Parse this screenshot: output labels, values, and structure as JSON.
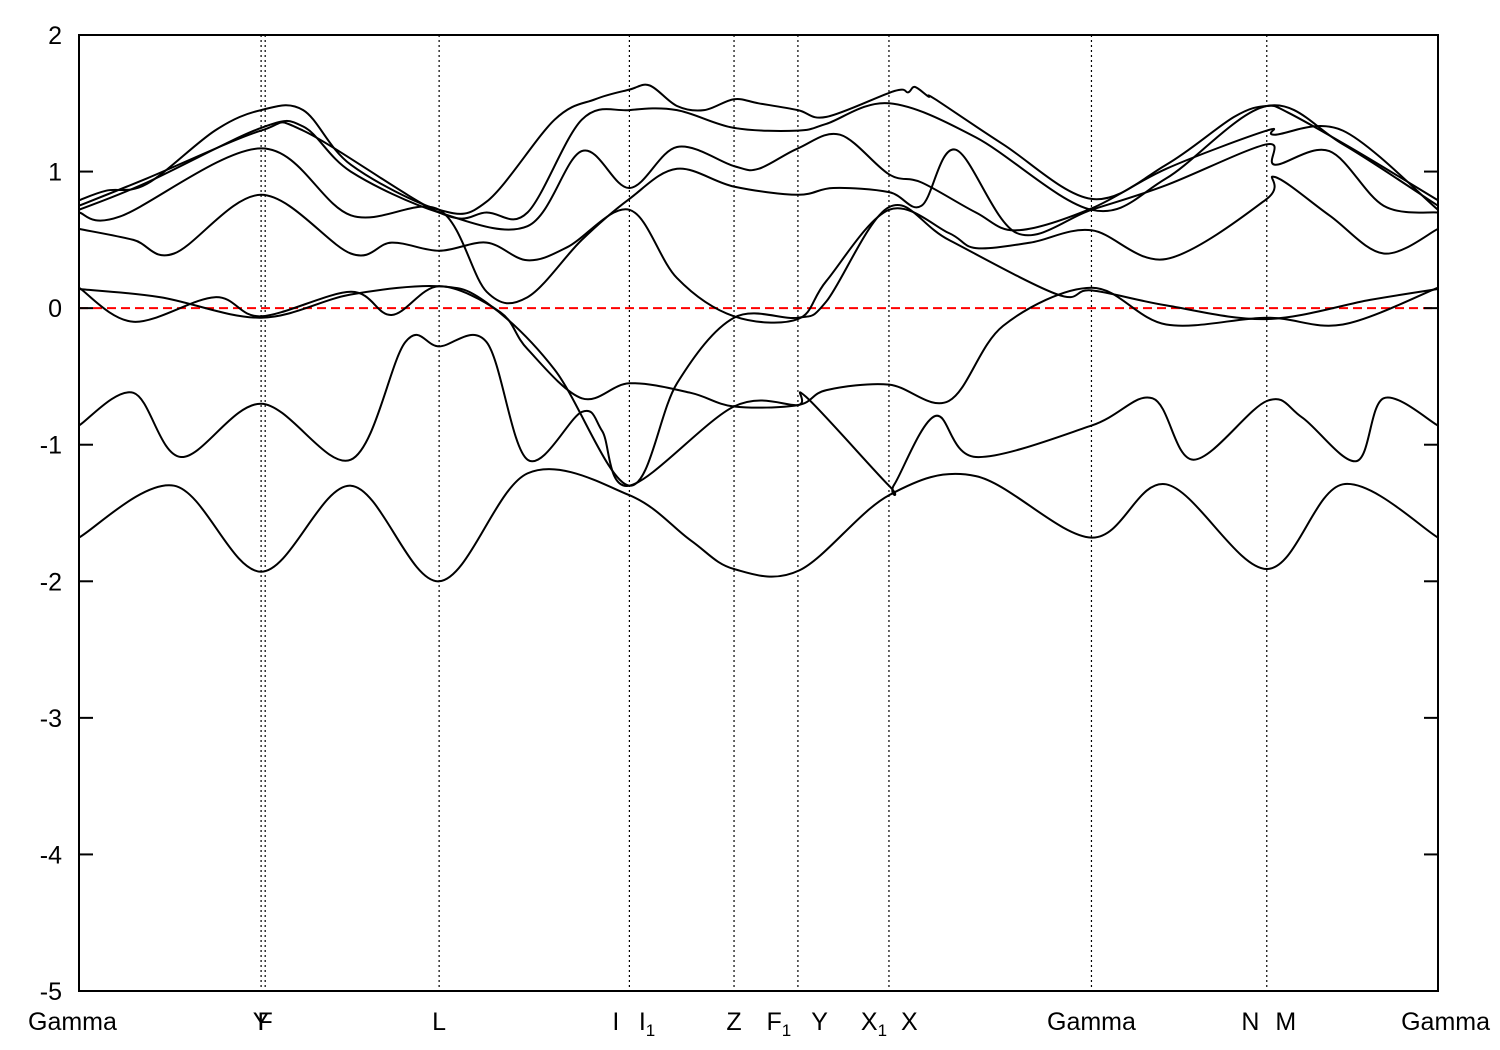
{
  "chart_data": {
    "type": "line",
    "title": "",
    "xlabel": "",
    "ylabel": "",
    "ylim": [
      -5,
      2
    ],
    "xlim": [
      0,
      1
    ],
    "grid": false,
    "legend": "none",
    "y_ticks": [
      -5,
      -4,
      -3,
      -2,
      -1,
      0,
      1,
      2
    ],
    "y_tick_labels": [
      "-5",
      "-4",
      "-3",
      "-2",
      "-1",
      "0",
      "1",
      "2"
    ],
    "fermi_level": {
      "y": 0,
      "color": "#ff0000",
      "style": "dashed"
    },
    "band_color": "#000000",
    "kpoint_line_positions": [
      0.134,
      0.137,
      0.265,
      0.405,
      0.482,
      0.529,
      0.596,
      0.745,
      0.874
    ],
    "kpoint_labels": [
      {
        "x": 0.0,
        "main": "Gamma",
        "sub": "",
        "anchor": "start"
      },
      {
        "x": 0.134,
        "main": "Y",
        "sub": "",
        "anchor": "middle"
      },
      {
        "x": 0.137,
        "main": "F",
        "sub": "",
        "anchor": "middle"
      },
      {
        "x": 0.265,
        "main": "L",
        "sub": "",
        "anchor": "middle"
      },
      {
        "x": 0.395,
        "main": "I",
        "sub": "",
        "anchor": "middle"
      },
      {
        "x": 0.418,
        "main": "I",
        "sub": "1",
        "anchor": "middle"
      },
      {
        "x": 0.482,
        "main": "Z",
        "sub": "",
        "anchor": "middle"
      },
      {
        "x": 0.515,
        "main": "F",
        "sub": "1",
        "anchor": "middle"
      },
      {
        "x": 0.545,
        "main": "Y",
        "sub": "",
        "anchor": "middle"
      },
      {
        "x": 0.585,
        "main": "X",
        "sub": "1",
        "anchor": "middle"
      },
      {
        "x": 0.611,
        "main": "X",
        "sub": "",
        "anchor": "middle"
      },
      {
        "x": 0.745,
        "main": "Gamma",
        "sub": "",
        "anchor": "middle"
      },
      {
        "x": 0.862,
        "main": "N",
        "sub": "",
        "anchor": "middle"
      },
      {
        "x": 0.888,
        "main": "M",
        "sub": "",
        "anchor": "middle"
      },
      {
        "x": 1.0,
        "main": "Gamma",
        "sub": "",
        "anchor": "end"
      }
    ],
    "series": [
      {
        "x": [
          0,
          0.07,
          0.134,
          0.2,
          0.265,
          0.33,
          0.405,
          0.45,
          0.482,
          0.53,
          0.596,
          0.66,
          0.745,
          0.8,
          0.874,
          0.93,
          1.0
        ],
        "y": [
          -1.68,
          -1.3,
          -1.93,
          -1.3,
          -2.0,
          -1.21,
          -1.37,
          -1.7,
          -1.91,
          -1.92,
          -1.37,
          -1.23,
          -1.68,
          -1.29,
          -1.91,
          -1.29,
          -1.68
        ]
      },
      {
        "x": [
          0,
          0.04,
          0.075,
          0.134,
          0.2,
          0.24,
          0.265,
          0.3,
          0.33,
          0.37,
          0.385,
          0.405,
          0.482,
          0.529,
          0.535,
          0.596,
          0.6,
          0.63,
          0.66,
          0.745,
          0.79,
          0.82,
          0.874,
          0.9,
          0.94,
          0.96,
          1.0
        ],
        "y": [
          -0.86,
          -0.62,
          -1.09,
          -0.7,
          -1.11,
          -0.25,
          -0.28,
          -0.25,
          -1.11,
          -0.76,
          -0.9,
          -1.3,
          -0.72,
          -0.71,
          -0.65,
          -1.3,
          -1.29,
          -0.79,
          -1.09,
          -0.86,
          -0.66,
          -1.11,
          -0.68,
          -0.8,
          -1.12,
          -0.66,
          -0.86
        ]
      },
      {
        "x": [
          0,
          0.04,
          0.1,
          0.134,
          0.2,
          0.23,
          0.265,
          0.31,
          0.33,
          0.37,
          0.405,
          0.45,
          0.482,
          0.529,
          0.55,
          0.596,
          0.64,
          0.68,
          0.745,
          0.8,
          0.874,
          0.93,
          1.0
        ],
        "y": [
          0.15,
          -0.1,
          0.08,
          -0.06,
          0.12,
          -0.05,
          0.16,
          -0.03,
          -0.3,
          -0.66,
          -0.55,
          -0.62,
          -0.72,
          -0.71,
          -0.6,
          -0.56,
          -0.68,
          -0.13,
          0.15,
          -0.12,
          -0.07,
          -0.12,
          0.15
        ]
      },
      {
        "x": [
          0,
          0.06,
          0.134,
          0.2,
          0.265,
          0.3,
          0.35,
          0.405,
          0.44,
          0.482,
          0.529,
          0.55,
          0.596,
          0.64,
          0.72,
          0.745,
          0.8,
          0.874,
          0.95,
          1.0
        ],
        "y": [
          0.14,
          0.08,
          -0.07,
          0.1,
          0.16,
          0.04,
          -0.45,
          -1.3,
          -0.55,
          -0.07,
          -0.07,
          0.05,
          0.74,
          0.5,
          0.1,
          0.13,
          0.02,
          -0.08,
          0.06,
          0.14
        ]
      },
      {
        "x": [
          0,
          0.04,
          0.07,
          0.134,
          0.2,
          0.23,
          0.265,
          0.3,
          0.33,
          0.36,
          0.405,
          0.44,
          0.482,
          0.529,
          0.55,
          0.596,
          0.64,
          0.66,
          0.7,
          0.745,
          0.8,
          0.874,
          0.88,
          0.92,
          0.96,
          1.0
        ],
        "y": [
          0.58,
          0.5,
          0.4,
          0.83,
          0.4,
          0.48,
          0.42,
          0.48,
          0.35,
          0.45,
          0.72,
          0.22,
          -0.06,
          -0.08,
          0.2,
          0.72,
          0.55,
          0.44,
          0.48,
          0.57,
          0.36,
          0.8,
          0.96,
          0.68,
          0.4,
          0.58
        ]
      },
      {
        "x": [
          0,
          0.03,
          0.134,
          0.2,
          0.265,
          0.3,
          0.33,
          0.37,
          0.405,
          0.44,
          0.482,
          0.529,
          0.555,
          0.596,
          0.62,
          0.645,
          0.69,
          0.745,
          0.8,
          0.874,
          0.88,
          0.92,
          0.96,
          1.0
        ],
        "y": [
          0.7,
          0.67,
          1.17,
          0.68,
          0.72,
          0.12,
          0.08,
          0.5,
          0.8,
          1.02,
          0.89,
          0.83,
          0.88,
          0.85,
          0.75,
          1.16,
          0.55,
          0.72,
          0.9,
          1.2,
          1.05,
          1.15,
          0.75,
          0.7
        ]
      },
      {
        "x": [
          0,
          0.05,
          0.134,
          0.165,
          0.2,
          0.265,
          0.33,
          0.37,
          0.405,
          0.44,
          0.482,
          0.5,
          0.529,
          0.56,
          0.596,
          0.62,
          0.66,
          0.69,
          0.745,
          0.8,
          0.874,
          0.88,
          0.93,
          1.0
        ],
        "y": [
          0.72,
          0.92,
          1.32,
          1.33,
          1.0,
          0.7,
          0.6,
          1.15,
          0.88,
          1.18,
          1.04,
          1.02,
          1.17,
          1.27,
          0.98,
          0.92,
          0.7,
          0.57,
          0.73,
          1.02,
          1.3,
          1.27,
          1.3,
          0.72
        ]
      },
      {
        "x": [
          0,
          0.05,
          0.134,
          0.165,
          0.265,
          0.3,
          0.33,
          0.37,
          0.405,
          0.44,
          0.482,
          0.529,
          0.55,
          0.596,
          0.66,
          0.745,
          0.8,
          0.874,
          0.93,
          1.0
        ],
        "y": [
          0.75,
          0.95,
          1.3,
          1.3,
          0.7,
          0.7,
          0.7,
          1.38,
          1.45,
          1.45,
          1.32,
          1.3,
          1.35,
          1.5,
          1.25,
          0.72,
          0.95,
          1.48,
          1.2,
          0.75
        ]
      },
      {
        "x": [
          0,
          0.02,
          0.05,
          0.1,
          0.134,
          0.165,
          0.2,
          0.265,
          0.3,
          0.35,
          0.38,
          0.405,
          0.42,
          0.44,
          0.46,
          0.482,
          0.5,
          0.529,
          0.55,
          0.6,
          0.61,
          0.615,
          0.625,
          0.63,
          0.68,
          0.745,
          0.8,
          0.85,
          0.874,
          0.89,
          0.94,
          1.0
        ],
        "y": [
          0.79,
          0.86,
          0.91,
          1.3,
          1.45,
          1.45,
          1.05,
          0.72,
          0.78,
          1.38,
          1.53,
          1.6,
          1.63,
          1.48,
          1.45,
          1.53,
          1.5,
          1.45,
          1.4,
          1.59,
          1.58,
          1.62,
          1.55,
          1.53,
          1.2,
          0.8,
          1.05,
          1.4,
          1.48,
          1.43,
          1.15,
          0.79
        ]
      }
    ]
  }
}
